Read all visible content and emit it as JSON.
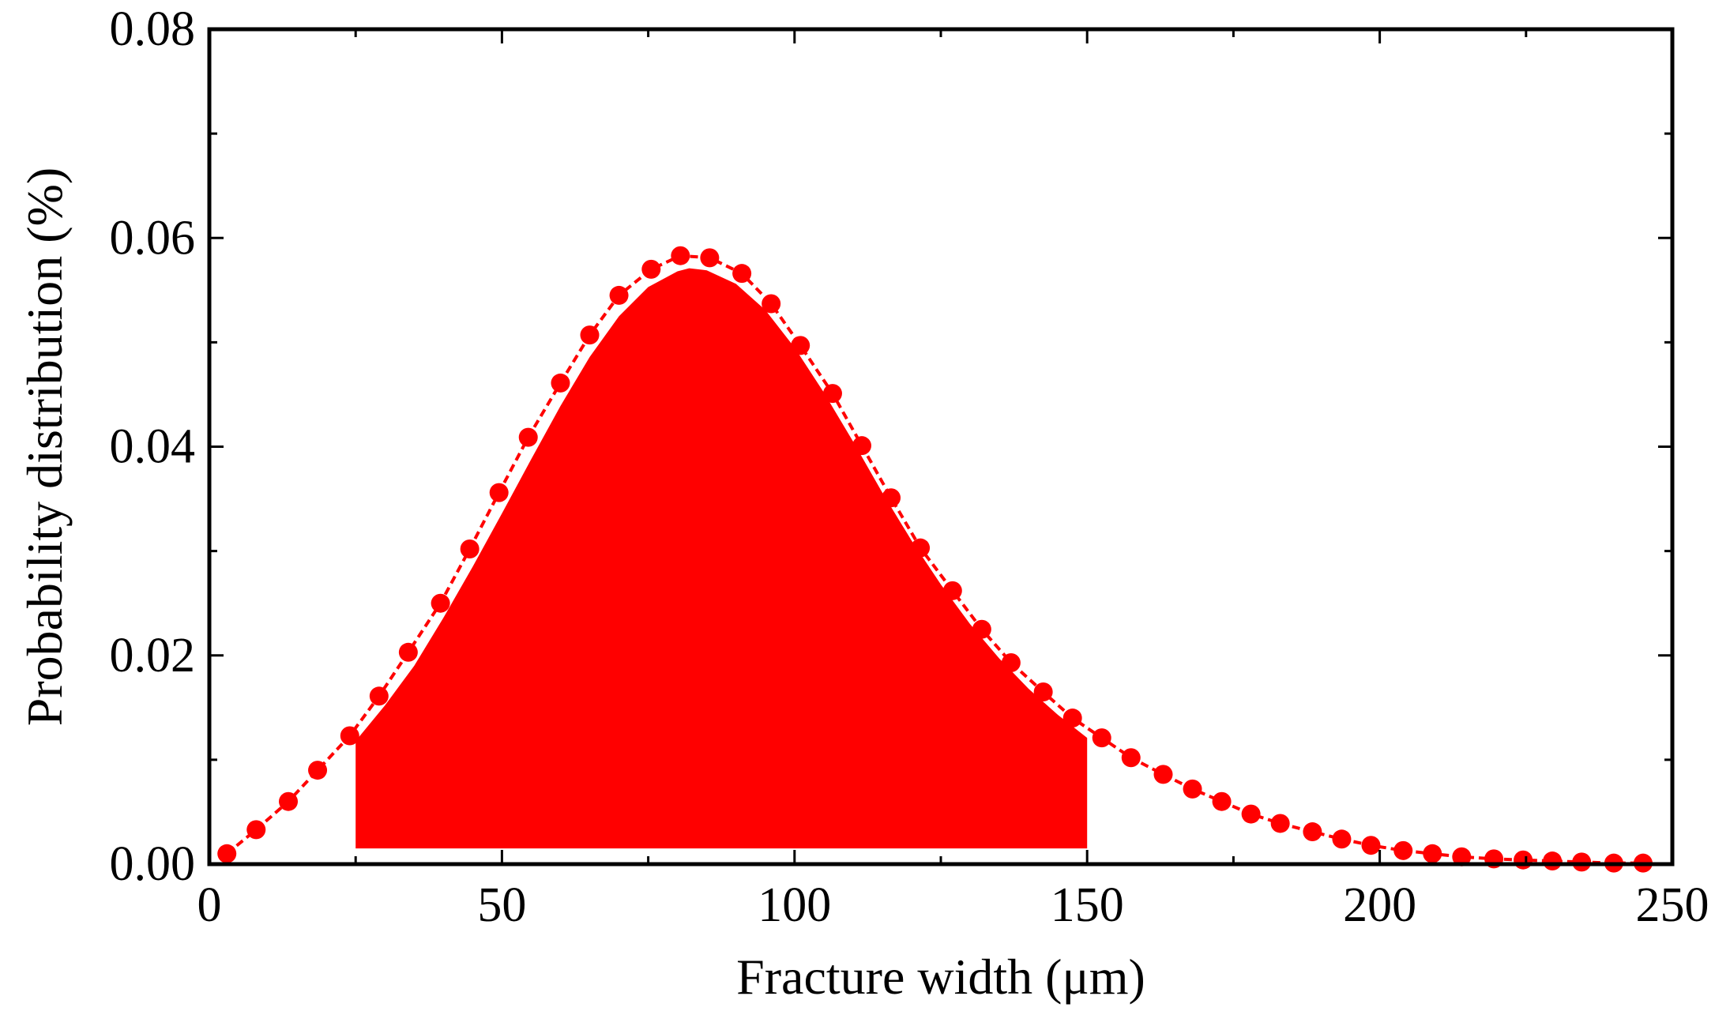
{
  "chart_data": {
    "type": "line",
    "title": "",
    "xlabel": "Fracture width (μm)",
    "ylabel": "Probability distribution (%)",
    "xlim": [
      0,
      250
    ],
    "ylim": [
      0,
      0.08
    ],
    "xticks": [
      0,
      50,
      100,
      150,
      200,
      250
    ],
    "xtick_labels": [
      "0",
      "50",
      "100",
      "150",
      "200",
      "250"
    ],
    "yticks": [
      0,
      0.02,
      0.04,
      0.06,
      0.08
    ],
    "ytick_labels": [
      "0.00",
      "0.02",
      "0.04",
      "0.06",
      "0.08"
    ],
    "grid": false,
    "legend": "none",
    "color": "#ff0000",
    "series": [
      {
        "style": "dotted line with circle markers",
        "x": [
          3,
          8,
          13.5,
          18.5,
          24,
          29,
          34,
          39.5,
          44.5,
          49.5,
          54.5,
          60,
          65,
          70,
          75.5,
          80.5,
          85.5,
          91,
          96,
          101,
          106.5,
          111.5,
          116.5,
          121.5,
          127,
          132,
          137,
          142.5,
          147.5,
          152.5,
          157.5,
          163,
          168,
          173,
          178,
          183,
          188.5,
          193.5,
          198.5,
          204,
          209,
          214,
          219.5,
          224.5,
          229.5,
          234.5,
          240,
          245
        ],
        "y": [
          0.001,
          0.0033,
          0.006,
          0.009,
          0.0123,
          0.0161,
          0.0203,
          0.025,
          0.0302,
          0.0356,
          0.0409,
          0.0461,
          0.0507,
          0.0545,
          0.057,
          0.0583,
          0.0581,
          0.0566,
          0.0537,
          0.0497,
          0.0451,
          0.0401,
          0.0351,
          0.0303,
          0.0262,
          0.0225,
          0.0193,
          0.0165,
          0.014,
          0.0121,
          0.0102,
          0.0086,
          0.0072,
          0.006,
          0.0048,
          0.0039,
          0.0031,
          0.0024,
          0.0018,
          0.0013,
          0.001,
          0.0007,
          0.0005,
          0.0004,
          0.0003,
          0.0002,
          0.0001,
          0.0001
        ]
      }
    ],
    "shaded_region": {
      "x_range": [
        25,
        150
      ],
      "baseline": 0.0015,
      "x": [
        25,
        30,
        35,
        40,
        45,
        50,
        55,
        60,
        65,
        70,
        75,
        80,
        82,
        85,
        90,
        95,
        100,
        105,
        110,
        115,
        120,
        125,
        130,
        135,
        140,
        145,
        150
      ],
      "y": [
        0.0118,
        0.0152,
        0.019,
        0.0236,
        0.0285,
        0.0336,
        0.0388,
        0.0439,
        0.0486,
        0.0525,
        0.0553,
        0.0568,
        0.0571,
        0.0569,
        0.0556,
        0.0531,
        0.0495,
        0.0452,
        0.0405,
        0.0356,
        0.031,
        0.0268,
        0.023,
        0.0197,
        0.0168,
        0.0143,
        0.0121
      ]
    }
  }
}
